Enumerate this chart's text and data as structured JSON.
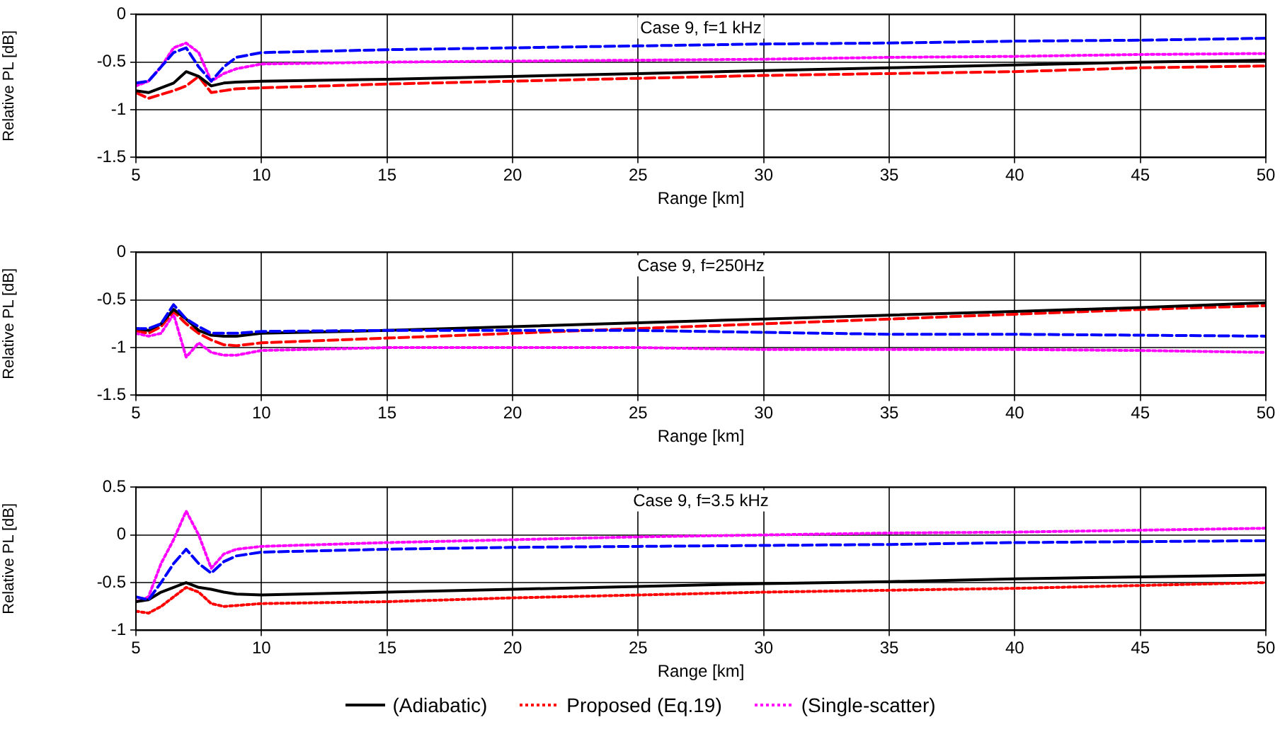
{
  "chart_data": [
    {
      "type": "line",
      "title": "Case 9, f=1 kHz",
      "xlabel": "Range [km]",
      "ylabel": "Relative PL [dB]",
      "x": [
        5,
        5.5,
        6,
        6.5,
        7,
        7.5,
        8,
        8.5,
        9,
        10,
        15,
        20,
        25,
        30,
        35,
        40,
        45,
        50
      ],
      "xlim": [
        5,
        50
      ],
      "xticks": [
        5,
        10,
        15,
        20,
        25,
        30,
        35,
        40,
        45,
        50
      ],
      "ylim": [
        -1.5,
        0
      ],
      "yticks": [
        -1.5,
        -1,
        -0.5,
        0
      ],
      "grid": true,
      "marker": "none",
      "series": [
        {
          "color": "#0000ff",
          "line_style": "dashed",
          "values": [
            -0.72,
            -0.7,
            -0.55,
            -0.4,
            -0.35,
            -0.55,
            -0.7,
            -0.55,
            -0.45,
            -0.4,
            -0.37,
            -0.35,
            -0.33,
            -0.31,
            -0.3,
            -0.28,
            -0.27,
            -0.25
          ]
        },
        {
          "color": "#000000",
          "line_style": "solid",
          "values": [
            -0.8,
            -0.82,
            -0.77,
            -0.72,
            -0.6,
            -0.65,
            -0.75,
            -0.72,
            -0.71,
            -0.7,
            -0.68,
            -0.65,
            -0.62,
            -0.59,
            -0.56,
            -0.53,
            -0.5,
            -0.48
          ]
        },
        {
          "color": "#ff0000",
          "line_style": "dashed",
          "values": [
            -0.82,
            -0.88,
            -0.84,
            -0.8,
            -0.75,
            -0.65,
            -0.82,
            -0.8,
            -0.78,
            -0.77,
            -0.73,
            -0.7,
            -0.67,
            -0.64,
            -0.62,
            -0.6,
            -0.56,
            -0.54
          ]
        },
        {
          "color": "#ff00ff",
          "line_style": "dotted",
          "values": [
            -0.75,
            -0.7,
            -0.55,
            -0.35,
            -0.3,
            -0.4,
            -0.7,
            -0.62,
            -0.57,
            -0.52,
            -0.5,
            -0.49,
            -0.48,
            -0.47,
            -0.45,
            -0.44,
            -0.42,
            -0.41
          ]
        }
      ]
    },
    {
      "type": "line",
      "title": "Case 9, f=250Hz",
      "xlabel": "Range [km]",
      "ylabel": "Relative PL [dB]",
      "x": [
        5,
        5.5,
        6,
        6.5,
        7,
        7.5,
        8,
        8.5,
        9,
        10,
        15,
        20,
        25,
        30,
        35,
        40,
        45,
        50
      ],
      "xlim": [
        5,
        50
      ],
      "xticks": [
        5,
        10,
        15,
        20,
        25,
        30,
        35,
        40,
        45,
        50
      ],
      "ylim": [
        -1.5,
        0
      ],
      "yticks": [
        -1.5,
        -1,
        -0.5,
        0
      ],
      "grid": true,
      "marker": "none",
      "series": [
        {
          "color": "#0000ff",
          "line_style": "dashed",
          "values": [
            -0.8,
            -0.8,
            -0.75,
            -0.55,
            -0.7,
            -0.78,
            -0.85,
            -0.85,
            -0.85,
            -0.83,
            -0.82,
            -0.82,
            -0.82,
            -0.84,
            -0.86,
            -0.86,
            -0.87,
            -0.88
          ]
        },
        {
          "color": "#000000",
          "line_style": "solid",
          "values": [
            -0.8,
            -0.82,
            -0.75,
            -0.6,
            -0.7,
            -0.82,
            -0.87,
            -0.88,
            -0.88,
            -0.85,
            -0.82,
            -0.78,
            -0.74,
            -0.7,
            -0.66,
            -0.62,
            -0.58,
            -0.53
          ]
        },
        {
          "color": "#ff0000",
          "line_style": "dashed",
          "values": [
            -0.82,
            -0.85,
            -0.78,
            -0.62,
            -0.75,
            -0.85,
            -0.92,
            -0.97,
            -0.98,
            -0.95,
            -0.9,
            -0.85,
            -0.8,
            -0.75,
            -0.7,
            -0.65,
            -0.6,
            -0.56
          ]
        },
        {
          "color": "#ff00ff",
          "line_style": "dotted",
          "values": [
            -0.85,
            -0.88,
            -0.85,
            -0.65,
            -1.1,
            -0.95,
            -1.05,
            -1.08,
            -1.08,
            -1.03,
            -1.0,
            -1.0,
            -1.0,
            -1.02,
            -1.02,
            -1.02,
            -1.03,
            -1.05
          ]
        }
      ]
    },
    {
      "type": "line",
      "title": "Case 9, f=3.5 kHz",
      "xlabel": "Range [km]",
      "ylabel": "Relative PL [dB]",
      "x": [
        5,
        5.5,
        6,
        6.5,
        7,
        7.5,
        8,
        8.5,
        9,
        10,
        15,
        20,
        25,
        30,
        35,
        40,
        45,
        50
      ],
      "xlim": [
        5,
        50
      ],
      "xticks": [
        5,
        10,
        15,
        20,
        25,
        30,
        35,
        40,
        45,
        50
      ],
      "ylim": [
        -1,
        0.5
      ],
      "yticks": [
        -1,
        -0.5,
        0,
        0.5
      ],
      "grid": true,
      "marker": "none",
      "legend": "bottom",
      "series": [
        {
          "color": "#0000ff",
          "line_style": "dashed",
          "values": [
            -0.65,
            -0.68,
            -0.5,
            -0.3,
            -0.15,
            -0.3,
            -0.4,
            -0.28,
            -0.22,
            -0.18,
            -0.15,
            -0.13,
            -0.12,
            -0.11,
            -0.1,
            -0.08,
            -0.07,
            -0.06
          ]
        },
        {
          "name": "(Adiabatic)",
          "color": "#000000",
          "line_style": "solid",
          "values": [
            -0.7,
            -0.68,
            -0.6,
            -0.55,
            -0.5,
            -0.55,
            -0.57,
            -0.6,
            -0.62,
            -0.63,
            -0.6,
            -0.57,
            -0.54,
            -0.51,
            -0.49,
            -0.46,
            -0.44,
            -0.42
          ]
        },
        {
          "name": "Proposed (Eq.19)",
          "color": "#ff0000",
          "line_style": "dotted",
          "values": [
            -0.8,
            -0.82,
            -0.75,
            -0.65,
            -0.55,
            -0.6,
            -0.72,
            -0.75,
            -0.74,
            -0.72,
            -0.7,
            -0.66,
            -0.63,
            -0.6,
            -0.58,
            -0.56,
            -0.53,
            -0.5
          ]
        },
        {
          "name": "(Single-scatter)",
          "color": "#ff00ff",
          "line_style": "dotted",
          "values": [
            -0.7,
            -0.65,
            -0.3,
            -0.05,
            0.25,
            0,
            -0.35,
            -0.2,
            -0.15,
            -0.12,
            -0.08,
            -0.05,
            -0.02,
            0,
            0.02,
            0.03,
            0.05,
            0.07
          ]
        }
      ]
    }
  ]
}
